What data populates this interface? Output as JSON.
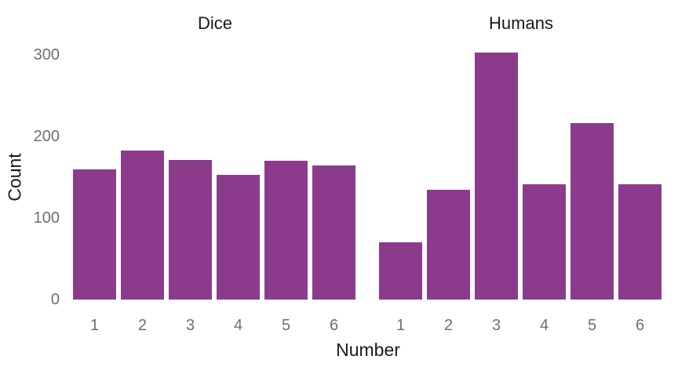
{
  "figure": {
    "background_color": "#ffffff"
  },
  "chart_data": {
    "type": "bar",
    "title": "",
    "xlabel": "Number",
    "ylabel": "Count",
    "categories": [
      "1",
      "2",
      "3",
      "4",
      "5",
      "6"
    ],
    "facets": [
      {
        "label": "Dice",
        "values": [
          160,
          183,
          171,
          153,
          170,
          164
        ]
      },
      {
        "label": "Humans",
        "values": [
          70,
          135,
          303,
          141,
          216,
          141
        ]
      }
    ],
    "ylim": [
      0,
      300
    ],
    "yticks": [
      0,
      100,
      200,
      300
    ],
    "grid": false,
    "legend": false,
    "bar_color": "#8C3B8C",
    "tick_label_color": "#6F6F6F",
    "axis_title_color": "#1A1A1A",
    "facet_title_color": "#1A1A1A"
  }
}
